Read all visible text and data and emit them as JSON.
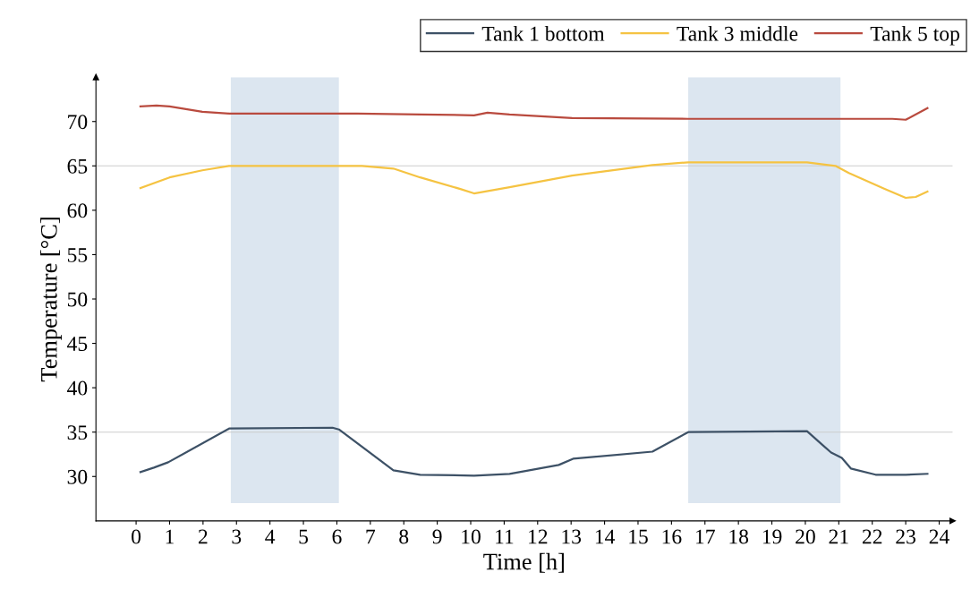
{
  "chart_data": {
    "type": "line",
    "xlabel": "Time [h]",
    "ylabel": "Temperature [°C]",
    "xlim": [
      -1.2,
      24.4
    ],
    "ylim": [
      25,
      75
    ],
    "xticks": [
      0,
      1,
      2,
      3,
      4,
      5,
      6,
      7,
      8,
      9,
      10,
      11,
      12,
      13,
      14,
      15,
      16,
      17,
      18,
      19,
      20,
      21,
      22,
      23,
      24
    ],
    "yticks": [
      30,
      35,
      40,
      45,
      50,
      55,
      60,
      65,
      70
    ],
    "grid": false,
    "legend": "top right",
    "marker": "none",
    "line_style": "solid",
    "ref_lines": [
      {
        "axis": "y",
        "value": 65,
        "color": "#cccccc"
      },
      {
        "axis": "y",
        "value": 35,
        "color": "#cccccc"
      }
    ],
    "bands": [
      {
        "axis": "x",
        "from": 2.83,
        "to": 6.06,
        "color": "#dce6f0"
      },
      {
        "axis": "x",
        "from": 16.5,
        "to": 21.05,
        "color": "#dce6f0"
      }
    ],
    "series": [
      {
        "name": "Tank 1 bottom",
        "color": "#3d5166",
        "x": [
          0.13,
          0.53,
          0.96,
          2.78,
          5.87,
          6.06,
          7.69,
          8.49,
          10.1,
          11.16,
          12.63,
          13.06,
          15.43,
          16.5,
          20.05,
          20.5,
          20.77,
          21.09,
          21.36,
          22.1,
          23.0,
          23.65
        ],
        "values": [
          30.5,
          31.0,
          31.6,
          35.4,
          35.5,
          35.3,
          30.7,
          30.2,
          30.1,
          30.3,
          31.3,
          32.0,
          32.8,
          35.0,
          35.1,
          33.6,
          32.7,
          32.1,
          30.9,
          30.2,
          30.2,
          30.3
        ]
      },
      {
        "name": "Tank 3 middle",
        "color": "#f5c342",
        "x": [
          0.13,
          1.0,
          1.98,
          2.78,
          6.75,
          7.69,
          8.49,
          9.69,
          10.1,
          11.16,
          13.03,
          15.43,
          16.5,
          20.05,
          20.9,
          21.3,
          22.37,
          23.0,
          23.3,
          23.65
        ],
        "values": [
          62.5,
          63.7,
          64.5,
          65.0,
          65.0,
          64.7,
          63.7,
          62.4,
          61.9,
          62.6,
          63.9,
          65.1,
          65.4,
          65.4,
          65.0,
          64.2,
          62.4,
          61.4,
          61.5,
          62.1
        ]
      },
      {
        "name": "Tank 5 top",
        "color": "#b94a3e",
        "x": [
          0.13,
          0.61,
          1.0,
          1.98,
          2.78,
          6.6,
          8.49,
          10.1,
          10.5,
          11.16,
          13.03,
          16.5,
          22.6,
          23.0,
          23.65
        ],
        "values": [
          71.7,
          71.8,
          71.7,
          71.1,
          70.9,
          70.9,
          70.8,
          70.7,
          71.0,
          70.8,
          70.4,
          70.3,
          70.3,
          70.2,
          71.5
        ]
      }
    ]
  }
}
